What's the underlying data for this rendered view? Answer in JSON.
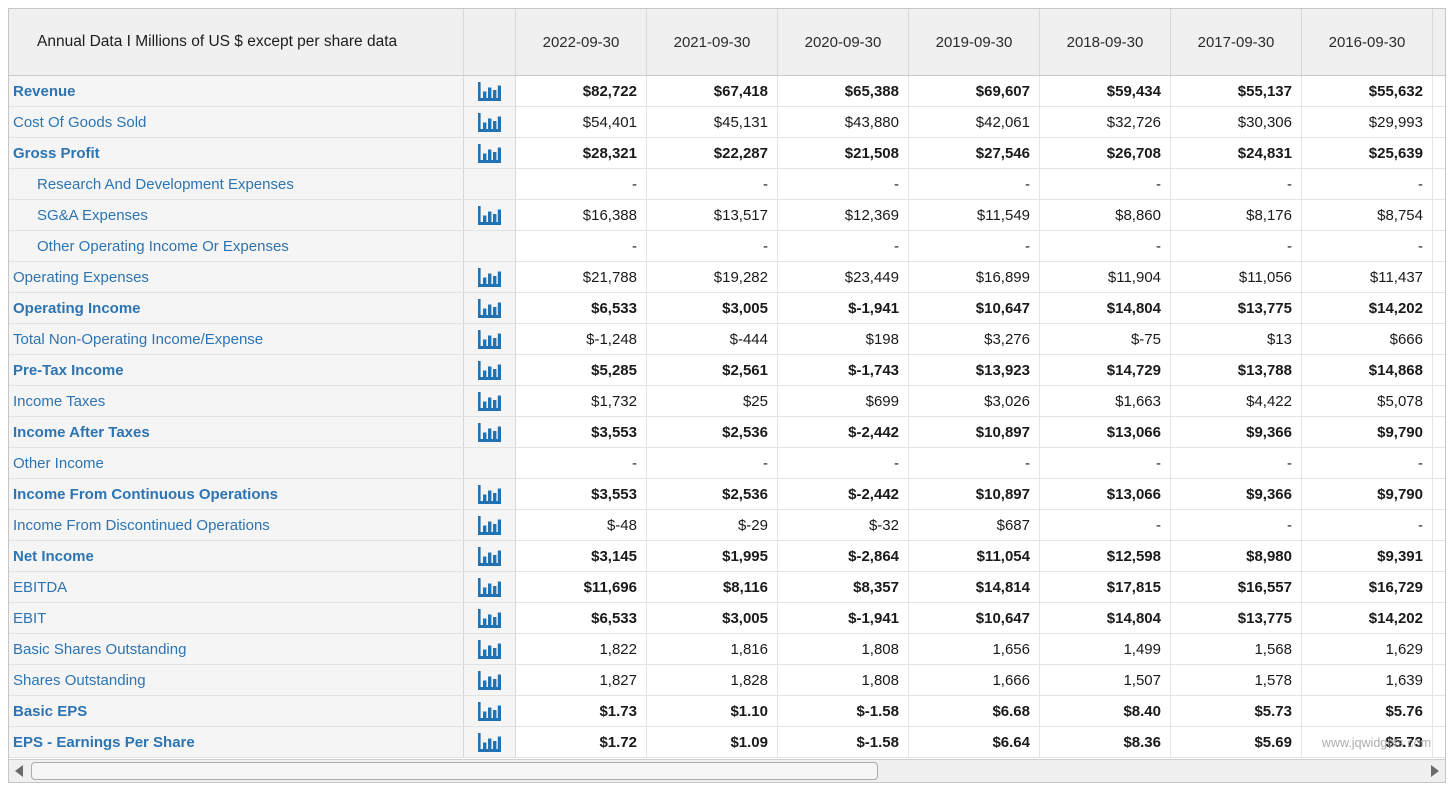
{
  "colors": {
    "link": "#2d74b2",
    "icon": "#2272b2",
    "value_text": "#1a1a1a",
    "header_bg": "#f0f0f0",
    "pinned_bg": "#f5f5f5",
    "watermark_text": "#a0a0a0"
  },
  "header": {
    "title": "Annual Data I Millions of US $ except per share data",
    "columns": [
      "2022-09-30",
      "2021-09-30",
      "2020-09-30",
      "2019-09-30",
      "2018-09-30",
      "2017-09-30",
      "2016-09-30"
    ]
  },
  "icon_name": "bar-chart-icon",
  "watermark": "www.jqwidgets.com",
  "scrollbar": {
    "left_arrow": "left-scroll-arrow",
    "right_arrow": "right-scroll-arrow"
  },
  "rows": [
    {
      "label": "Revenue",
      "label_bold": true,
      "values_bold": true,
      "indent": false,
      "icon": true,
      "values": [
        "$82,722",
        "$67,418",
        "$65,388",
        "$69,607",
        "$59,434",
        "$55,137",
        "$55,632"
      ]
    },
    {
      "label": "Cost Of Goods Sold",
      "label_bold": false,
      "values_bold": false,
      "indent": false,
      "icon": true,
      "values": [
        "$54,401",
        "$45,131",
        "$43,880",
        "$42,061",
        "$32,726",
        "$30,306",
        "$29,993"
      ]
    },
    {
      "label": "Gross Profit",
      "label_bold": true,
      "values_bold": true,
      "indent": false,
      "icon": true,
      "values": [
        "$28,321",
        "$22,287",
        "$21,508",
        "$27,546",
        "$26,708",
        "$24,831",
        "$25,639"
      ]
    },
    {
      "label": "Research And Development Expenses",
      "label_bold": false,
      "values_bold": false,
      "indent": true,
      "icon": false,
      "values": [
        "-",
        "-",
        "-",
        "-",
        "-",
        "-",
        "-"
      ]
    },
    {
      "label": "SG&A Expenses",
      "label_bold": false,
      "values_bold": false,
      "indent": true,
      "icon": true,
      "values": [
        "$16,388",
        "$13,517",
        "$12,369",
        "$11,549",
        "$8,860",
        "$8,176",
        "$8,754"
      ]
    },
    {
      "label": "Other Operating Income Or Expenses",
      "label_bold": false,
      "values_bold": false,
      "indent": true,
      "icon": false,
      "values": [
        "-",
        "-",
        "-",
        "-",
        "-",
        "-",
        "-"
      ]
    },
    {
      "label": "Operating Expenses",
      "label_bold": false,
      "values_bold": false,
      "indent": false,
      "icon": true,
      "values": [
        "$21,788",
        "$19,282",
        "$23,449",
        "$16,899",
        "$11,904",
        "$11,056",
        "$11,437"
      ]
    },
    {
      "label": "Operating Income",
      "label_bold": true,
      "values_bold": true,
      "indent": false,
      "icon": true,
      "values": [
        "$6,533",
        "$3,005",
        "$-1,941",
        "$10,647",
        "$14,804",
        "$13,775",
        "$14,202"
      ]
    },
    {
      "label": "Total Non-Operating Income/Expense",
      "label_bold": false,
      "values_bold": false,
      "indent": false,
      "icon": true,
      "values": [
        "$-1,248",
        "$-444",
        "$198",
        "$3,276",
        "$-75",
        "$13",
        "$666"
      ]
    },
    {
      "label": "Pre-Tax Income",
      "label_bold": true,
      "values_bold": true,
      "indent": false,
      "icon": true,
      "values": [
        "$5,285",
        "$2,561",
        "$-1,743",
        "$13,923",
        "$14,729",
        "$13,788",
        "$14,868"
      ]
    },
    {
      "label": "Income Taxes",
      "label_bold": false,
      "values_bold": false,
      "indent": false,
      "icon": true,
      "values": [
        "$1,732",
        "$25",
        "$699",
        "$3,026",
        "$1,663",
        "$4,422",
        "$5,078"
      ]
    },
    {
      "label": "Income After Taxes",
      "label_bold": true,
      "values_bold": true,
      "indent": false,
      "icon": true,
      "values": [
        "$3,553",
        "$2,536",
        "$-2,442",
        "$10,897",
        "$13,066",
        "$9,366",
        "$9,790"
      ]
    },
    {
      "label": "Other Income",
      "label_bold": false,
      "values_bold": false,
      "indent": false,
      "icon": false,
      "values": [
        "-",
        "-",
        "-",
        "-",
        "-",
        "-",
        "-"
      ]
    },
    {
      "label": "Income From Continuous Operations",
      "label_bold": true,
      "values_bold": true,
      "indent": false,
      "icon": true,
      "values": [
        "$3,553",
        "$2,536",
        "$-2,442",
        "$10,897",
        "$13,066",
        "$9,366",
        "$9,790"
      ]
    },
    {
      "label": "Income From Discontinued Operations",
      "label_bold": false,
      "values_bold": false,
      "indent": false,
      "icon": true,
      "values": [
        "$-48",
        "$-29",
        "$-32",
        "$687",
        "-",
        "-",
        "-"
      ]
    },
    {
      "label": "Net Income",
      "label_bold": true,
      "values_bold": true,
      "indent": false,
      "icon": true,
      "values": [
        "$3,145",
        "$1,995",
        "$-2,864",
        "$11,054",
        "$12,598",
        "$8,980",
        "$9,391"
      ]
    },
    {
      "label": "EBITDA",
      "label_bold": false,
      "values_bold": true,
      "indent": false,
      "icon": true,
      "values": [
        "$11,696",
        "$8,116",
        "$8,357",
        "$14,814",
        "$17,815",
        "$16,557",
        "$16,729"
      ]
    },
    {
      "label": "EBIT",
      "label_bold": false,
      "values_bold": true,
      "indent": false,
      "icon": true,
      "values": [
        "$6,533",
        "$3,005",
        "$-1,941",
        "$10,647",
        "$14,804",
        "$13,775",
        "$14,202"
      ]
    },
    {
      "label": "Basic Shares Outstanding",
      "label_bold": false,
      "values_bold": false,
      "indent": false,
      "icon": true,
      "values": [
        "1,822",
        "1,816",
        "1,808",
        "1,656",
        "1,499",
        "1,568",
        "1,629"
      ]
    },
    {
      "label": "Shares Outstanding",
      "label_bold": false,
      "values_bold": false,
      "indent": false,
      "icon": true,
      "values": [
        "1,827",
        "1,828",
        "1,808",
        "1,666",
        "1,507",
        "1,578",
        "1,639"
      ]
    },
    {
      "label": "Basic EPS",
      "label_bold": true,
      "values_bold": true,
      "indent": false,
      "icon": true,
      "values": [
        "$1.73",
        "$1.10",
        "$-1.58",
        "$6.68",
        "$8.40",
        "$5.73",
        "$5.76"
      ]
    },
    {
      "label": "EPS - Earnings Per Share",
      "label_bold": true,
      "values_bold": true,
      "indent": false,
      "icon": true,
      "values": [
        "$1.72",
        "$1.09",
        "$-1.58",
        "$6.64",
        "$8.36",
        "$5.69",
        "$5.73"
      ]
    }
  ]
}
